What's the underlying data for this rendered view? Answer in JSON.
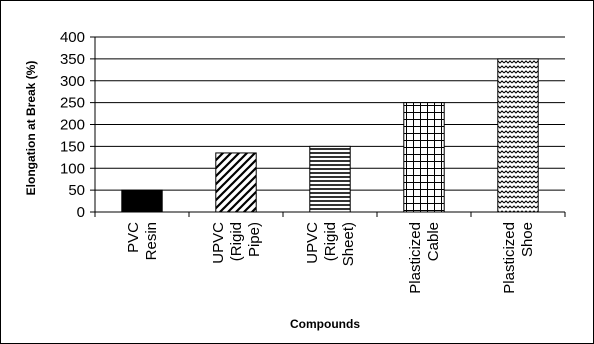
{
  "chart_data": {
    "type": "bar",
    "title": "",
    "xlabel": "Compounds",
    "ylabel": "Elongation at Break (%)",
    "ylim": [
      0,
      400
    ],
    "yticks": [
      0,
      50,
      100,
      150,
      200,
      250,
      300,
      350,
      400
    ],
    "grid": true,
    "categories": [
      [
        "PVC",
        "Resin"
      ],
      [
        "UPVC",
        "(Rigid",
        "Pipe)"
      ],
      [
        "UPVC",
        "(Rigid",
        "Sheet)"
      ],
      [
        "Plasticized",
        "Cable"
      ],
      [
        "Plasticized",
        "Shoe"
      ]
    ],
    "values": [
      50,
      135,
      150,
      250,
      350
    ],
    "fills": [
      "solid",
      "diagonal",
      "horizontal",
      "grid",
      "wave"
    ]
  }
}
